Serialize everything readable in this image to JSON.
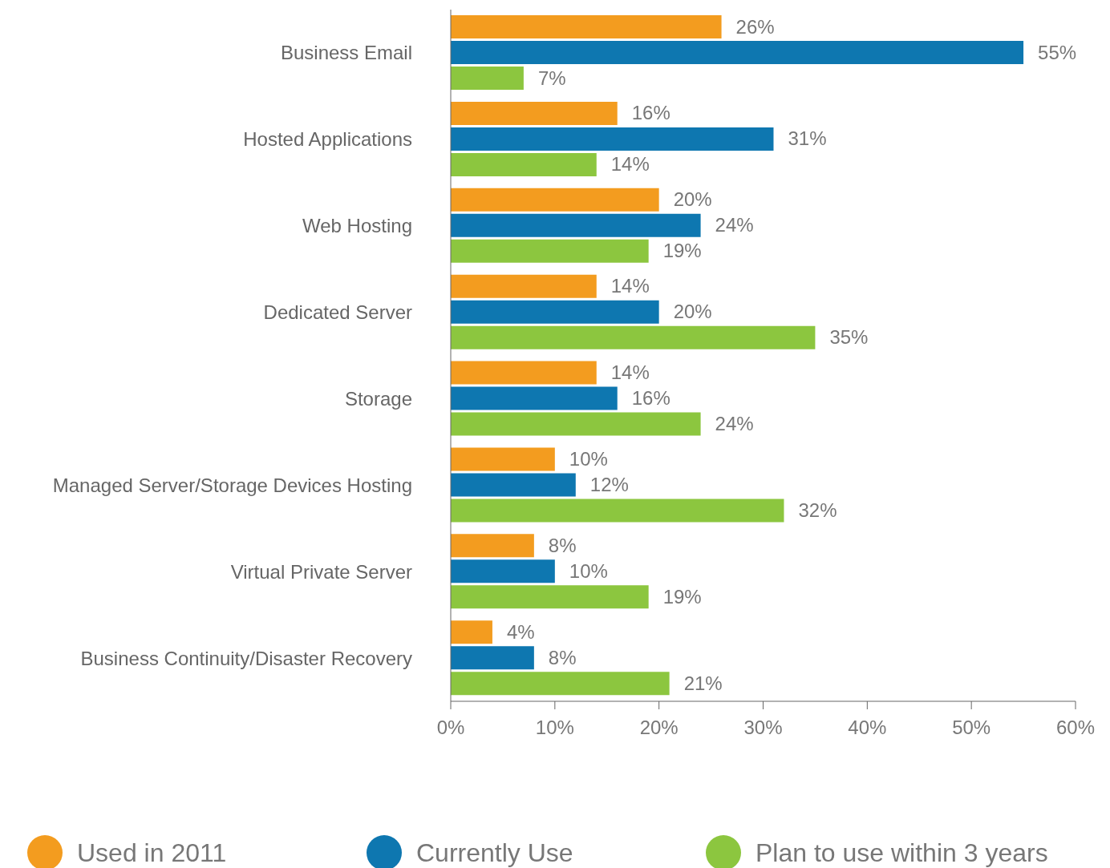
{
  "chart_data": {
    "type": "bar",
    "orientation": "horizontal",
    "categories": [
      "Business Email",
      "Hosted Applications",
      "Web Hosting",
      "Dedicated Server",
      "Storage",
      "Managed Server/Storage Devices Hosting",
      "Virtual Private Server",
      "Business Continuity/Disaster Recovery"
    ],
    "series": [
      {
        "name": "Used in 2011",
        "color": "#f39c1f",
        "values": [
          26,
          16,
          20,
          14,
          14,
          10,
          8,
          4
        ],
        "value_labels": [
          "26%",
          "16%",
          "20%",
          "14%",
          "14%",
          "10%",
          "8%",
          "4%"
        ]
      },
      {
        "name": "Currently Use",
        "color": "#0e77b0",
        "values": [
          55,
          31,
          24,
          20,
          16,
          12,
          10,
          8
        ],
        "value_labels": [
          "55%",
          "31%",
          "24%",
          "20%",
          "16%",
          "12%",
          "10%",
          "8%"
        ]
      },
      {
        "name": "Plan to use within 3 years",
        "color": "#8cc63f",
        "values": [
          7,
          14,
          19,
          35,
          24,
          32,
          19,
          21
        ],
        "value_labels": [
          "7%",
          "14%",
          "19%",
          "35%",
          "24%",
          "32%",
          "19%",
          "21%"
        ]
      }
    ],
    "xlim": [
      0,
      60
    ],
    "xticks": [
      {
        "value": 0,
        "label": "0%"
      },
      {
        "value": 10,
        "label": "10%"
      },
      {
        "value": 20,
        "label": "20%"
      },
      {
        "value": 30,
        "label": "30%"
      },
      {
        "value": 40,
        "label": "40%"
      },
      {
        "value": 50,
        "label": "50%"
      },
      {
        "value": 60,
        "label": "60%"
      }
    ],
    "grid": false,
    "legend": "bottom"
  }
}
